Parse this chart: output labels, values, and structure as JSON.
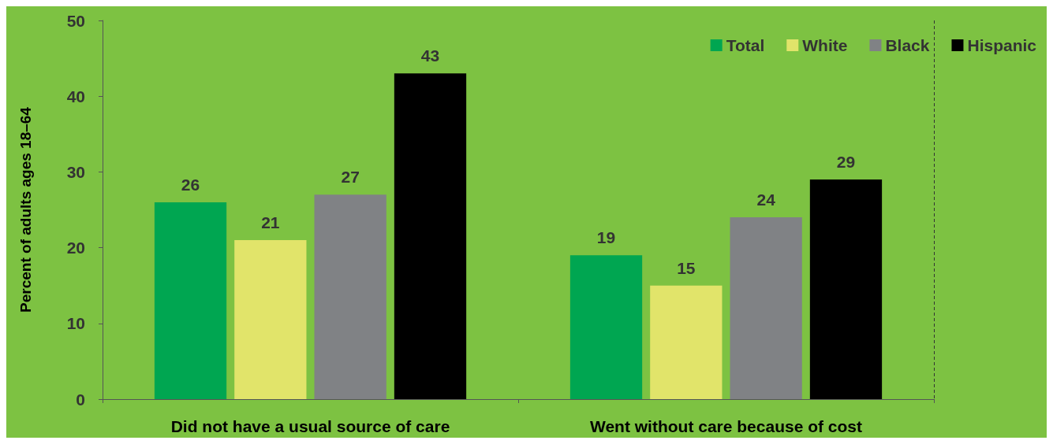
{
  "chart_data": {
    "type": "bar",
    "ylabel": "Percent of adults ages 18–64",
    "categories": [
      "Did not have a usual source of care",
      "Went without care because of cost"
    ],
    "series": [
      {
        "name": "Total",
        "color": "#00a651",
        "values": [
          26,
          19
        ]
      },
      {
        "name": "White",
        "color": "#e1e46a",
        "values": [
          21,
          15
        ]
      },
      {
        "name": "Black",
        "color": "#808285",
        "values": [
          27,
          24
        ]
      },
      {
        "name": "Hispanic",
        "color": "#000000",
        "values": [
          43,
          29
        ]
      }
    ],
    "ylim": [
      0,
      50
    ],
    "yticks": [
      0,
      10,
      20,
      30,
      40,
      50
    ],
    "grid": false,
    "legend": "top right",
    "data_labels": true
  }
}
